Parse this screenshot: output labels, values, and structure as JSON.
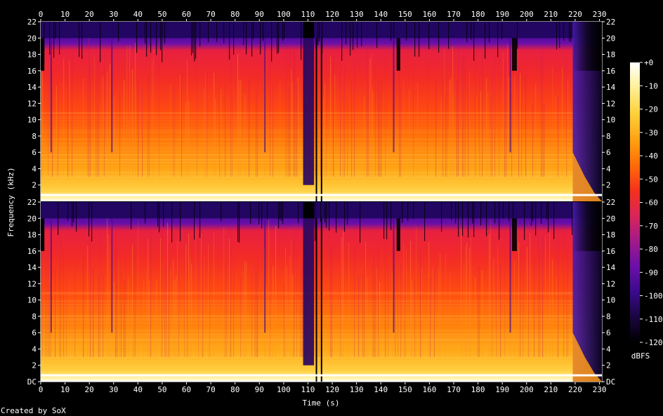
{
  "chart_data": {
    "type": "heatmap",
    "subtype": "spectrogram",
    "xlabel": "Time (s)",
    "ylabel": "Frequency (kHz)",
    "x_ticks": [
      0,
      10,
      20,
      30,
      40,
      50,
      60,
      70,
      80,
      90,
      100,
      110,
      120,
      130,
      140,
      150,
      160,
      170,
      180,
      190,
      200,
      210,
      220,
      230
    ],
    "xlim": [
      0,
      231
    ],
    "channels": [
      {
        "y_ticks": [
          "22",
          "20",
          "18",
          "16",
          "14",
          "12",
          "10",
          "8",
          "6",
          "4",
          "2"
        ],
        "ylim": [
          0,
          22
        ]
      },
      {
        "y_ticks": [
          "22",
          "20",
          "18",
          "16",
          "14",
          "12",
          "10",
          "8",
          "6",
          "4",
          "2",
          "DC"
        ],
        "ylim": [
          0,
          22
        ]
      }
    ],
    "colorbar": {
      "label": "dBFS",
      "range": [
        -120,
        0
      ],
      "ticks": [
        "+0",
        "-10",
        "-20",
        "-30",
        "-40",
        "-50",
        "-60",
        "-70",
        "-80",
        "-90",
        "-100",
        "-110",
        "-120"
      ],
      "colors": [
        "#000000",
        "#1a0640",
        "#3b0a8c",
        "#6a0fa8",
        "#a11a8a",
        "#d8255a",
        "#f5301e",
        "#ff6a08",
        "#ffa010",
        "#ffd23c",
        "#fff2a0",
        "#ffffff"
      ]
    },
    "credit": "Created by SoX"
  }
}
